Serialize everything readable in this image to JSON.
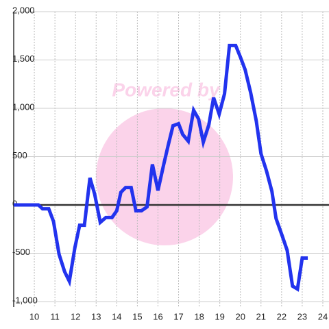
{
  "chart_data": {
    "type": "line",
    "watermark": "Powered by",
    "x": [
      9,
      10.2,
      10.4,
      10.7,
      10.93,
      11.2,
      11.47,
      11.7,
      11.97,
      12.2,
      12.43,
      12.7,
      12.93,
      13.2,
      13.47,
      13.77,
      14.0,
      14.2,
      14.43,
      14.7,
      14.93,
      15.2,
      15.47,
      15.73,
      16.0,
      16.27,
      16.5,
      16.73,
      17.0,
      17.2,
      17.47,
      17.73,
      17.97,
      18.2,
      18.47,
      18.7,
      18.97,
      19.23,
      19.47,
      19.77,
      20.0,
      20.23,
      20.5,
      20.77,
      21.0,
      21.27,
      21.53,
      21.73,
      22.03,
      22.27,
      22.53,
      22.77,
      23.0,
      23.27
    ],
    "series": [
      {
        "color": "#2233ee",
        "values": [
          0,
          0,
          -40,
          -40,
          -170,
          -510,
          -690,
          -790,
          -440,
          -210,
          -210,
          280,
          110,
          -180,
          -130,
          -130,
          -60,
          130,
          180,
          180,
          -60,
          -60,
          -20,
          420,
          150,
          410,
          620,
          820,
          840,
          730,
          660,
          980,
          890,
          650,
          830,
          1110,
          940,
          1150,
          1650,
          1650,
          1530,
          1400,
          1160,
          870,
          530,
          350,
          140,
          -140,
          -320,
          -470,
          -840,
          -870,
          -550,
          -550
        ]
      }
    ],
    "xlim": [
      9,
      24.3
    ],
    "xticks": [
      10,
      11,
      12,
      13,
      14,
      15,
      16,
      17,
      18,
      19,
      20,
      21,
      22,
      23,
      24
    ],
    "ylim": [
      -1000,
      2000
    ],
    "yticks": [
      {
        "value": -1000,
        "label": "-1,000"
      },
      -500,
      0,
      500,
      {
        "value": 1000,
        "label": "1,000"
      },
      {
        "value": 1500,
        "label": "1,500"
      },
      {
        "value": 2000,
        "label": "2,000"
      }
    ],
    "grid": true
  }
}
